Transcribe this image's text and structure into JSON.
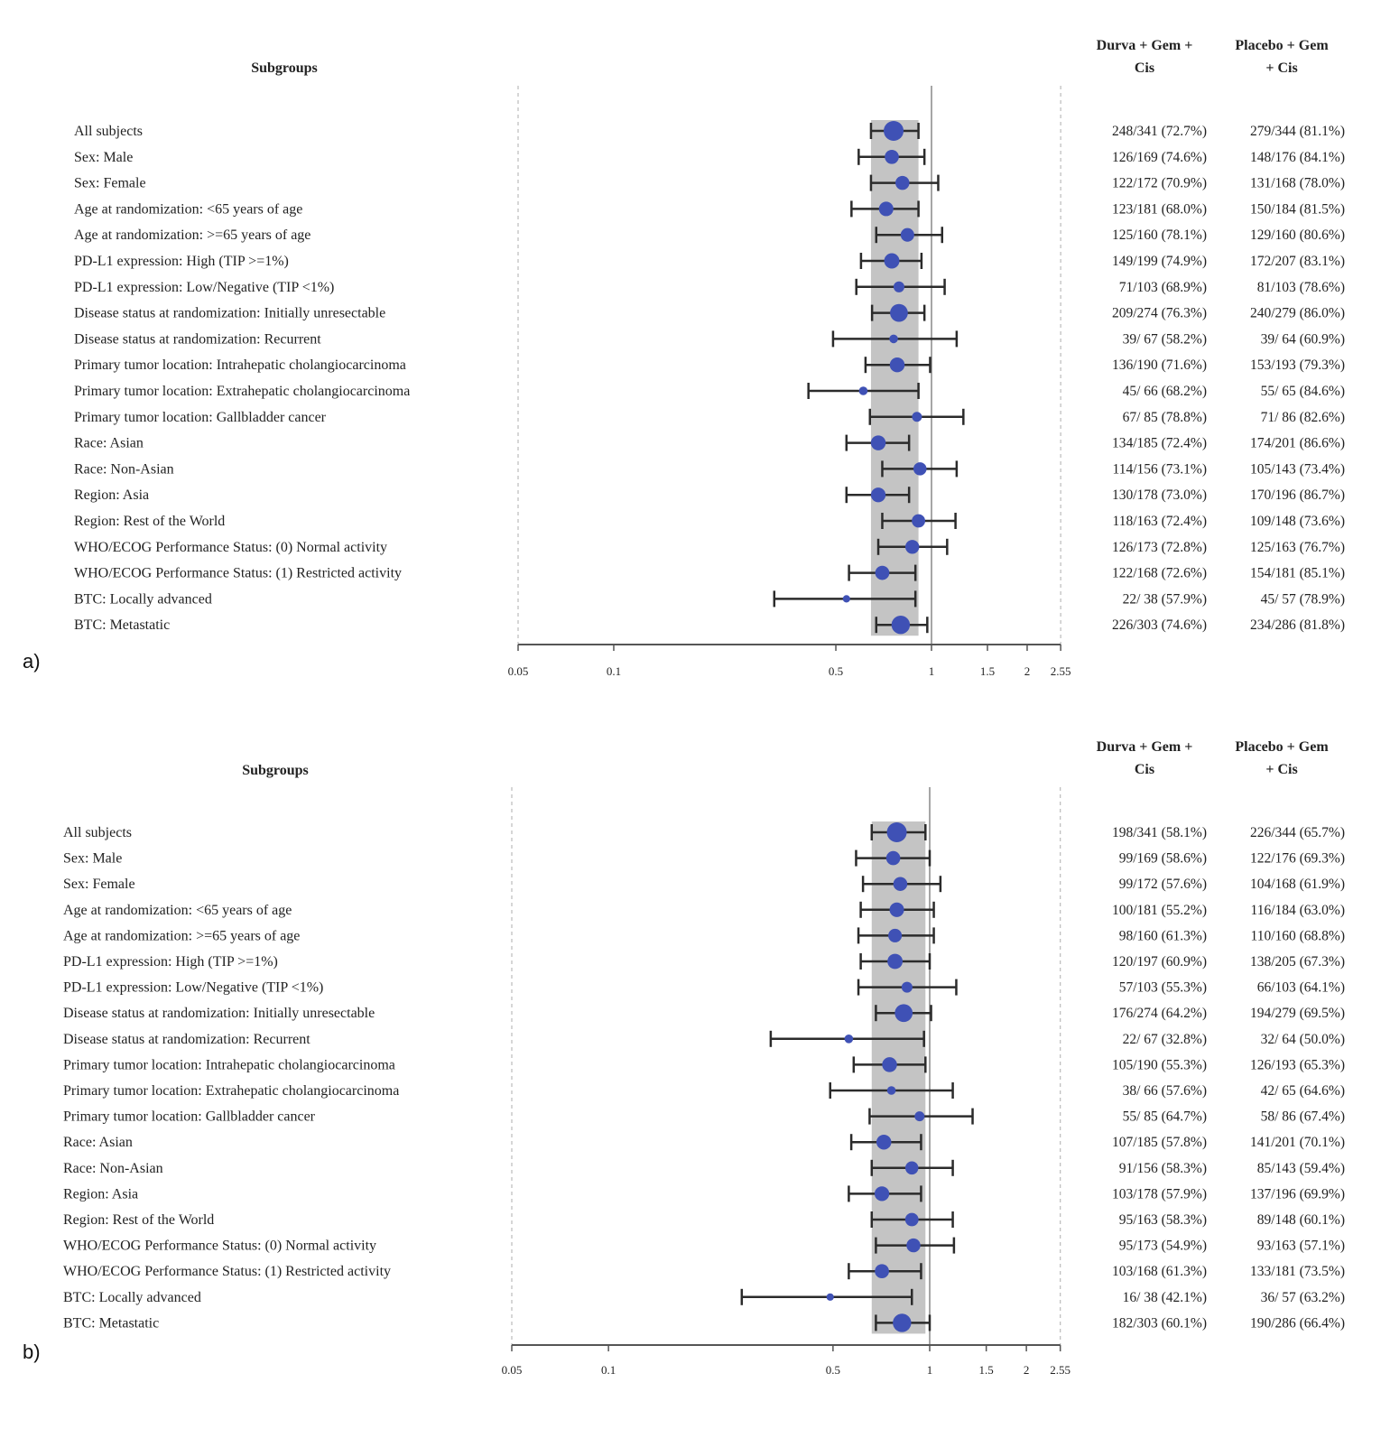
{
  "chart_data": [
    {
      "type": "forest",
      "panel_label": "a)",
      "scale": "log",
      "xlim": [
        0.05,
        2.55
      ],
      "xticks": [
        "0.05",
        "0.1",
        "0.5",
        "1",
        "1.5",
        "2",
        "2.55"
      ],
      "reference_line": 1,
      "shaded_band": [
        0.645,
        0.91
      ],
      "marker_color": "#3f51b5",
      "headers": {
        "subgroups": "Subgroups",
        "col1": [
          "Durva + Gem +",
          "Cis"
        ],
        "col2": [
          "Placebo + Gem",
          "+ Cis"
        ]
      },
      "rows": [
        {
          "label": "All subjects",
          "hr": 0.76,
          "lo": 0.645,
          "hi": 0.91,
          "col1": "248/341 (72.7%)",
          "col2": "279/344 (81.1%)"
        },
        {
          "label": "Sex: Male",
          "hr": 0.75,
          "lo": 0.59,
          "hi": 0.95,
          "col1": "126/169 (74.6%)",
          "col2": "148/176 (84.1%)"
        },
        {
          "label": "Sex: Female",
          "hr": 0.81,
          "lo": 0.645,
          "hi": 1.05,
          "col1": "122/172 (70.9%)",
          "col2": "131/168 (78.0%)"
        },
        {
          "label": "Age at randomization: <65 years of age",
          "hr": 0.72,
          "lo": 0.56,
          "hi": 0.91,
          "col1": "123/181 (68.0%)",
          "col2": "150/184 (81.5%)"
        },
        {
          "label": "Age at randomization: >=65 years of age",
          "hr": 0.84,
          "lo": 0.67,
          "hi": 1.08,
          "col1": "125/160 (78.1%)",
          "col2": "129/160 (80.6%)"
        },
        {
          "label": "PD-L1 expression: High (TIP >=1%)",
          "hr": 0.75,
          "lo": 0.6,
          "hi": 0.93,
          "col1": "149/199 (74.9%)",
          "col2": "172/207 (83.1%)"
        },
        {
          "label": "PD-L1 expression: Low/Negative (TIP <1%)",
          "hr": 0.79,
          "lo": 0.58,
          "hi": 1.1,
          "col1": "71/103 (68.9%)",
          "col2": "81/103 (78.6%)"
        },
        {
          "label": "Disease status at randomization: Initially unresectable",
          "hr": 0.79,
          "lo": 0.65,
          "hi": 0.95,
          "col1": "209/274 (76.3%)",
          "col2": "240/279 (86.0%)"
        },
        {
          "label": "Disease status at randomization: Recurrent",
          "hr": 0.76,
          "lo": 0.49,
          "hi": 1.2,
          "col1": "39/ 67 (58.2%)",
          "col2": "39/ 64 (60.9%)"
        },
        {
          "label": "Primary tumor location: Intrahepatic cholangiocarcinoma",
          "hr": 0.78,
          "lo": 0.62,
          "hi": 0.99,
          "col1": "136/190 (71.6%)",
          "col2": "153/193 (79.3%)"
        },
        {
          "label": "Primary tumor location: Extrahepatic cholangiocarcinoma",
          "hr": 0.61,
          "lo": 0.41,
          "hi": 0.91,
          "col1": "45/ 66 (68.2%)",
          "col2": "55/ 65 (84.6%)"
        },
        {
          "label": "Primary tumor location: Gallbladder cancer",
          "hr": 0.9,
          "lo": 0.64,
          "hi": 1.26,
          "col1": "67/ 85 (78.8%)",
          "col2": "71/ 86 (82.6%)"
        },
        {
          "label": "Race: Asian",
          "hr": 0.68,
          "lo": 0.54,
          "hi": 0.85,
          "col1": "134/185 (72.4%)",
          "col2": "174/201 (86.6%)"
        },
        {
          "label": "Race: Non-Asian",
          "hr": 0.92,
          "lo": 0.7,
          "hi": 1.2,
          "col1": "114/156 (73.1%)",
          "col2": "105/143 (73.4%)"
        },
        {
          "label": "Region: Asia",
          "hr": 0.68,
          "lo": 0.54,
          "hi": 0.85,
          "col1": "130/178 (73.0%)",
          "col2": "170/196 (86.7%)"
        },
        {
          "label": "Region: Rest of the World",
          "hr": 0.91,
          "lo": 0.7,
          "hi": 1.19,
          "col1": "118/163 (72.4%)",
          "col2": "109/148 (73.6%)"
        },
        {
          "label": "WHO/ECOG Performance Status: (0) Normal activity",
          "hr": 0.87,
          "lo": 0.68,
          "hi": 1.12,
          "col1": "126/173 (72.8%)",
          "col2": "125/163 (76.7%)"
        },
        {
          "label": "WHO/ECOG Performance Status: (1) Restricted activity",
          "hr": 0.7,
          "lo": 0.55,
          "hi": 0.89,
          "col1": "122/168 (72.6%)",
          "col2": "154/181 (85.1%)"
        },
        {
          "label": "BTC: Locally advanced",
          "hr": 0.54,
          "lo": 0.32,
          "hi": 0.89,
          "col1": "22/ 38 (57.9%)",
          "col2": "45/ 57 (78.9%)"
        },
        {
          "label": "BTC: Metastatic",
          "hr": 0.8,
          "lo": 0.67,
          "hi": 0.97,
          "col1": "226/303 (74.6%)",
          "col2": "234/286 (81.8%)"
        }
      ]
    },
    {
      "type": "forest",
      "panel_label": "b)",
      "scale": "log",
      "xlim": [
        0.05,
        2.55
      ],
      "xticks": [
        "0.05",
        "0.1",
        "0.5",
        "1",
        "1.5",
        "2",
        "2.55"
      ],
      "reference_line": 1,
      "shaded_band": [
        0.66,
        0.97
      ],
      "marker_color": "#3f51b5",
      "headers": {
        "subgroups": "Subgroups",
        "col1": [
          "Durva + Gem +",
          "Cis"
        ],
        "col2": [
          "Placebo + Gem",
          "+ Cis"
        ]
      },
      "rows": [
        {
          "label": "All subjects",
          "hr": 0.79,
          "lo": 0.66,
          "hi": 0.97,
          "col1": "198/341 (58.1%)",
          "col2": "226/344 (65.7%)"
        },
        {
          "label": "Sex: Male",
          "hr": 0.77,
          "lo": 0.59,
          "hi": 1.0,
          "col1": "99/169 (58.6%)",
          "col2": "122/176 (69.3%)"
        },
        {
          "label": "Sex: Female",
          "hr": 0.81,
          "lo": 0.62,
          "hi": 1.08,
          "col1": "99/172 (57.6%)",
          "col2": "104/168 (61.9%)"
        },
        {
          "label": "Age at randomization: <65 years of age",
          "hr": 0.79,
          "lo": 0.61,
          "hi": 1.03,
          "col1": "100/181 (55.2%)",
          "col2": "116/184 (63.0%)"
        },
        {
          "label": "Age at randomization: >=65 years of age",
          "hr": 0.78,
          "lo": 0.6,
          "hi": 1.03,
          "col1": "98/160 (61.3%)",
          "col2": "110/160 (68.8%)"
        },
        {
          "label": "PD-L1 expression: High (TIP >=1%)",
          "hr": 0.78,
          "lo": 0.61,
          "hi": 1.0,
          "col1": "120/197 (60.9%)",
          "col2": "138/205 (67.3%)"
        },
        {
          "label": "PD-L1 expression: Low/Negative (TIP <1%)",
          "hr": 0.85,
          "lo": 0.6,
          "hi": 1.21,
          "col1": "57/103 (55.3%)",
          "col2": "66/103 (64.1%)"
        },
        {
          "label": "Disease status at randomization: Initially unresectable",
          "hr": 0.83,
          "lo": 0.68,
          "hi": 1.01,
          "col1": "176/274 (64.2%)",
          "col2": "194/279 (69.5%)"
        },
        {
          "label": "Disease status at randomization: Recurrent",
          "hr": 0.56,
          "lo": 0.32,
          "hi": 0.96,
          "col1": "22/ 67 (32.8%)",
          "col2": "32/ 64 (50.0%)"
        },
        {
          "label": "Primary tumor location: Intrahepatic cholangiocarcinoma",
          "hr": 0.75,
          "lo": 0.58,
          "hi": 0.97,
          "col1": "105/190 (55.3%)",
          "col2": "126/193 (65.3%)"
        },
        {
          "label": "Primary tumor location: Extrahepatic cholangiocarcinoma",
          "hr": 0.76,
          "lo": 0.49,
          "hi": 1.18,
          "col1": "38/ 66 (57.6%)",
          "col2": "42/ 65 (64.6%)"
        },
        {
          "label": "Primary tumor location: Gallbladder cancer",
          "hr": 0.93,
          "lo": 0.65,
          "hi": 1.36,
          "col1": "55/ 85 (64.7%)",
          "col2": "58/ 86 (67.4%)"
        },
        {
          "label": "Race: Asian",
          "hr": 0.72,
          "lo": 0.57,
          "hi": 0.94,
          "col1": "107/185 (57.8%)",
          "col2": "141/201 (70.1%)"
        },
        {
          "label": "Race: Non-Asian",
          "hr": 0.88,
          "lo": 0.66,
          "hi": 1.18,
          "col1": "91/156 (58.3%)",
          "col2": "85/143 (59.4%)"
        },
        {
          "label": "Region: Asia",
          "hr": 0.71,
          "lo": 0.56,
          "hi": 0.94,
          "col1": "103/178 (57.9%)",
          "col2": "137/196 (69.9%)"
        },
        {
          "label": "Region: Rest of the World",
          "hr": 0.88,
          "lo": 0.66,
          "hi": 1.18,
          "col1": "95/163 (58.3%)",
          "col2": "89/148 (60.1%)"
        },
        {
          "label": "WHO/ECOG Performance Status: (0) Normal activity",
          "hr": 0.89,
          "lo": 0.68,
          "hi": 1.19,
          "col1": "95/173 (54.9%)",
          "col2": "93/163 (57.1%)"
        },
        {
          "label": "WHO/ECOG Performance Status: (1) Restricted activity",
          "hr": 0.71,
          "lo": 0.56,
          "hi": 0.94,
          "col1": "103/168 (61.3%)",
          "col2": "133/181 (73.5%)"
        },
        {
          "label": "BTC: Locally advanced",
          "hr": 0.49,
          "lo": 0.26,
          "hi": 0.88,
          "col1": "16/ 38 (42.1%)",
          "col2": "36/ 57 (63.2%)"
        },
        {
          "label": "BTC: Metastatic",
          "hr": 0.82,
          "lo": 0.68,
          "hi": 1.0,
          "col1": "182/303 (60.1%)",
          "col2": "190/286 (66.4%)"
        }
      ]
    }
  ]
}
